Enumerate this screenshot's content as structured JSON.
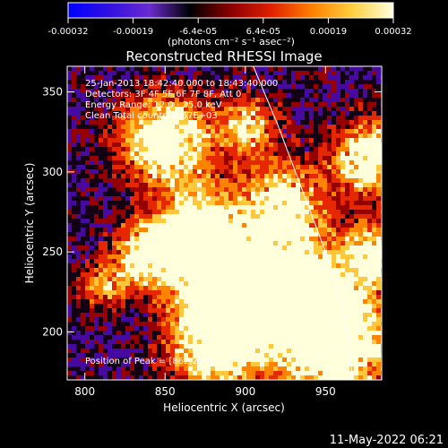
{
  "colorbar": {
    "ticks": [
      "-0.00032",
      "-0.00019",
      "-6.4e-05",
      "6.4e-05",
      "0.00019",
      "0.00032"
    ],
    "units": "(photons cm⁻² s⁻¹ asec⁻²)",
    "colors": [
      "#0000ff",
      "#3010e0",
      "#6a2bd0",
      "#000000",
      "#8a0000",
      "#e02000",
      "#ff8000",
      "#ffd040",
      "#ffffe0"
    ]
  },
  "chart_data": {
    "type": "heatmap",
    "title": "Reconstructed RHESSI Image",
    "xlabel": "Heliocentric X (arcsec)",
    "ylabel": "Heliocentric Y (arcsec)",
    "xlim": [
      789,
      985
    ],
    "ylim": [
      170,
      366
    ],
    "xticks": [
      800,
      850,
      900,
      950
    ],
    "yticks": [
      200,
      250,
      300,
      350
    ],
    "grid": false,
    "annotations": [
      "25-Jan-2013 18:42:40.000 to 18:43:40.000",
      "Detectors: 3F 4F 5F 6F 7F 8F, Att 0",
      "Energy Range: 12.0 - 25.0 keV",
      "Clean     Total counts: 6.67E+03"
    ],
    "peak_text": "Position of Peak = [862,263]",
    "limb": [
      [
        905,
        366
      ],
      [
        920,
        330
      ],
      [
        935,
        290
      ],
      [
        950,
        250
      ],
      [
        962,
        210
      ],
      [
        967,
        170
      ]
    ]
  },
  "footer": {
    "date": "11-May-2022 06:21"
  }
}
